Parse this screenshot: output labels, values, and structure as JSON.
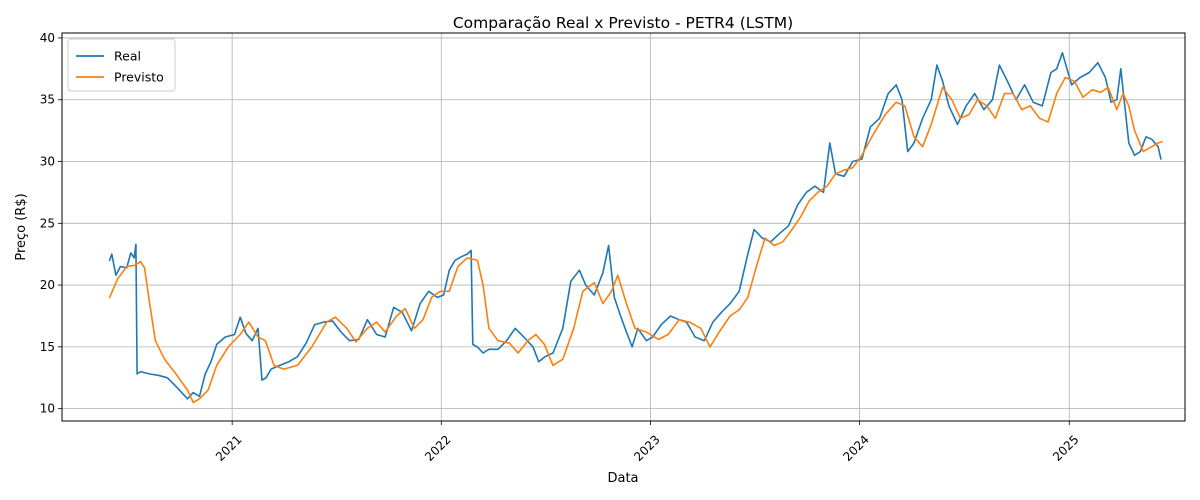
{
  "chart_data": {
    "type": "line",
    "title": "Comparação Real x Previsto - PETR4 (LSTM)",
    "xlabel": "Data",
    "ylabel": "Preço (R$)",
    "xlim": [
      "2020-03-10",
      "2025-07-22"
    ],
    "ylim": [
      9,
      40.4
    ],
    "x_ticks": [
      {
        "date": "2021-01-01",
        "label": "2021"
      },
      {
        "date": "2022-01-01",
        "label": "2022"
      },
      {
        "date": "2023-01-01",
        "label": "2023"
      },
      {
        "date": "2024-01-01",
        "label": "2024"
      },
      {
        "date": "2025-01-01",
        "label": "2025"
      }
    ],
    "y_ticks": [
      10,
      15,
      20,
      25,
      30,
      35,
      40
    ],
    "grid": true,
    "legend_position": "top-left",
    "series": [
      {
        "name": "Real",
        "color": "#1f77b4",
        "points": [
          [
            "2020-06-01",
            22.0
          ],
          [
            "2020-06-05",
            22.5
          ],
          [
            "2020-06-12",
            20.8
          ],
          [
            "2020-06-20",
            21.5
          ],
          [
            "2020-07-01",
            21.4
          ],
          [
            "2020-07-08",
            22.6
          ],
          [
            "2020-07-14",
            22.2
          ],
          [
            "2020-07-17",
            23.3
          ],
          [
            "2020-07-19",
            12.8
          ],
          [
            "2020-07-25",
            13.0
          ],
          [
            "2020-08-10",
            12.8
          ],
          [
            "2020-08-25",
            12.7
          ],
          [
            "2020-09-10",
            12.5
          ],
          [
            "2020-09-25",
            11.8
          ],
          [
            "2020-10-05",
            11.3
          ],
          [
            "2020-10-15",
            10.8
          ],
          [
            "2020-10-25",
            11.3
          ],
          [
            "2020-11-05",
            11.0
          ],
          [
            "2020-11-15",
            12.8
          ],
          [
            "2020-11-25",
            13.8
          ],
          [
            "2020-12-05",
            15.2
          ],
          [
            "2020-12-20",
            15.8
          ],
          [
            "2021-01-05",
            16.0
          ],
          [
            "2021-01-15",
            17.4
          ],
          [
            "2021-01-25",
            16.1
          ],
          [
            "2021-02-05",
            15.5
          ],
          [
            "2021-02-15",
            16.5
          ],
          [
            "2021-02-22",
            12.3
          ],
          [
            "2021-03-01",
            12.5
          ],
          [
            "2021-03-10",
            13.2
          ],
          [
            "2021-03-25",
            13.5
          ],
          [
            "2021-04-10",
            13.8
          ],
          [
            "2021-04-25",
            14.2
          ],
          [
            "2021-05-10",
            15.3
          ],
          [
            "2021-05-25",
            16.8
          ],
          [
            "2021-06-10",
            17.0
          ],
          [
            "2021-06-25",
            17.1
          ],
          [
            "2021-07-10",
            16.2
          ],
          [
            "2021-07-25",
            15.5
          ],
          [
            "2021-08-10",
            15.6
          ],
          [
            "2021-08-25",
            17.2
          ],
          [
            "2021-09-10",
            16.0
          ],
          [
            "2021-09-25",
            15.8
          ],
          [
            "2021-10-10",
            18.2
          ],
          [
            "2021-10-25",
            17.8
          ],
          [
            "2021-11-10",
            16.3
          ],
          [
            "2021-11-25",
            18.5
          ],
          [
            "2021-12-10",
            19.5
          ],
          [
            "2021-12-25",
            19.0
          ],
          [
            "2022-01-05",
            19.2
          ],
          [
            "2022-01-15",
            21.2
          ],
          [
            "2022-01-25",
            22.0
          ],
          [
            "2022-02-05",
            22.3
          ],
          [
            "2022-02-15",
            22.5
          ],
          [
            "2022-02-22",
            22.8
          ],
          [
            "2022-02-25",
            15.2
          ],
          [
            "2022-03-05",
            15.0
          ],
          [
            "2022-03-15",
            14.5
          ],
          [
            "2022-03-25",
            14.8
          ],
          [
            "2022-04-10",
            14.8
          ],
          [
            "2022-04-25",
            15.5
          ],
          [
            "2022-05-10",
            16.5
          ],
          [
            "2022-05-25",
            15.8
          ],
          [
            "2022-06-10",
            15.0
          ],
          [
            "2022-06-20",
            13.8
          ],
          [
            "2022-07-01",
            14.2
          ],
          [
            "2022-07-15",
            14.5
          ],
          [
            "2022-08-01",
            16.5
          ],
          [
            "2022-08-15",
            20.3
          ],
          [
            "2022-08-30",
            21.2
          ],
          [
            "2022-09-10",
            20.0
          ],
          [
            "2022-09-25",
            19.2
          ],
          [
            "2022-10-10",
            21.0
          ],
          [
            "2022-10-20",
            23.2
          ],
          [
            "2022-10-30",
            19.0
          ],
          [
            "2022-11-10",
            17.5
          ],
          [
            "2022-11-20",
            16.2
          ],
          [
            "2022-11-30",
            15.0
          ],
          [
            "2022-12-10",
            16.5
          ],
          [
            "2022-12-25",
            15.5
          ],
          [
            "2023-01-05",
            15.8
          ],
          [
            "2023-01-20",
            16.8
          ],
          [
            "2023-02-05",
            17.5
          ],
          [
            "2023-02-20",
            17.2
          ],
          [
            "2023-03-05",
            17.0
          ],
          [
            "2023-03-20",
            15.8
          ],
          [
            "2023-04-05",
            15.5
          ],
          [
            "2023-04-20",
            17.0
          ],
          [
            "2023-05-05",
            17.8
          ],
          [
            "2023-05-20",
            18.5
          ],
          [
            "2023-06-05",
            19.5
          ],
          [
            "2023-06-20",
            22.5
          ],
          [
            "2023-07-01",
            24.5
          ],
          [
            "2023-07-15",
            23.8
          ],
          [
            "2023-07-30",
            23.5
          ],
          [
            "2023-08-15",
            24.2
          ],
          [
            "2023-08-30",
            24.8
          ],
          [
            "2023-09-15",
            26.5
          ],
          [
            "2023-09-30",
            27.5
          ],
          [
            "2023-10-15",
            28.0
          ],
          [
            "2023-10-30",
            27.5
          ],
          [
            "2023-11-10",
            31.5
          ],
          [
            "2023-11-20",
            29.0
          ],
          [
            "2023-12-05",
            28.8
          ],
          [
            "2023-12-20",
            30.0
          ],
          [
            "2024-01-05",
            30.2
          ],
          [
            "2024-01-20",
            32.8
          ],
          [
            "2024-02-05",
            33.5
          ],
          [
            "2024-02-20",
            35.5
          ],
          [
            "2024-03-05",
            36.2
          ],
          [
            "2024-03-15",
            35.0
          ],
          [
            "2024-03-25",
            30.8
          ],
          [
            "2024-04-05",
            31.5
          ],
          [
            "2024-04-20",
            33.5
          ],
          [
            "2024-05-05",
            35.0
          ],
          [
            "2024-05-15",
            37.8
          ],
          [
            "2024-05-25",
            36.5
          ],
          [
            "2024-06-05",
            34.5
          ],
          [
            "2024-06-20",
            33.0
          ],
          [
            "2024-07-05",
            34.5
          ],
          [
            "2024-07-20",
            35.5
          ],
          [
            "2024-08-05",
            34.2
          ],
          [
            "2024-08-20",
            35.0
          ],
          [
            "2024-09-01",
            37.8
          ],
          [
            "2024-09-15",
            36.5
          ],
          [
            "2024-09-30",
            35.0
          ],
          [
            "2024-10-15",
            36.2
          ],
          [
            "2024-10-30",
            34.8
          ],
          [
            "2024-11-15",
            34.5
          ],
          [
            "2024-11-30",
            37.2
          ],
          [
            "2024-12-10",
            37.5
          ],
          [
            "2024-12-20",
            38.8
          ],
          [
            "2025-01-05",
            36.2
          ],
          [
            "2025-01-20",
            36.8
          ],
          [
            "2025-02-05",
            37.2
          ],
          [
            "2025-02-20",
            38.0
          ],
          [
            "2025-03-05",
            36.8
          ],
          [
            "2025-03-15",
            34.8
          ],
          [
            "2025-03-25",
            35.0
          ],
          [
            "2025-04-01",
            37.5
          ],
          [
            "2025-04-08",
            34.5
          ],
          [
            "2025-04-15",
            31.5
          ],
          [
            "2025-04-25",
            30.5
          ],
          [
            "2025-05-05",
            30.8
          ],
          [
            "2025-05-15",
            32.0
          ],
          [
            "2025-05-25",
            31.8
          ],
          [
            "2025-06-05",
            31.2
          ],
          [
            "2025-06-10",
            30.2
          ]
        ]
      },
      {
        "name": "Previsto",
        "color": "#ff7f0e",
        "points": [
          [
            "2020-06-01",
            19.0
          ],
          [
            "2020-06-15",
            20.5
          ],
          [
            "2020-07-01",
            21.5
          ],
          [
            "2020-07-15",
            21.6
          ],
          [
            "2020-07-25",
            21.9
          ],
          [
            "2020-08-01",
            21.4
          ],
          [
            "2020-08-10",
            18.5
          ],
          [
            "2020-08-20",
            15.5
          ],
          [
            "2020-09-05",
            14.0
          ],
          [
            "2020-09-25",
            12.8
          ],
          [
            "2020-10-15",
            11.5
          ],
          [
            "2020-10-25",
            10.5
          ],
          [
            "2020-11-05",
            10.8
          ],
          [
            "2020-11-20",
            11.5
          ],
          [
            "2020-12-05",
            13.5
          ],
          [
            "2020-12-25",
            15.0
          ],
          [
            "2021-01-15",
            16.0
          ],
          [
            "2021-01-30",
            17.0
          ],
          [
            "2021-02-15",
            15.8
          ],
          [
            "2021-02-28",
            15.5
          ],
          [
            "2021-03-15",
            13.5
          ],
          [
            "2021-04-01",
            13.2
          ],
          [
            "2021-04-25",
            13.5
          ],
          [
            "2021-05-20",
            15.0
          ],
          [
            "2021-06-15",
            17.0
          ],
          [
            "2021-06-30",
            17.4
          ],
          [
            "2021-07-20",
            16.5
          ],
          [
            "2021-08-05",
            15.4
          ],
          [
            "2021-08-25",
            16.5
          ],
          [
            "2021-09-10",
            17.0
          ],
          [
            "2021-09-25",
            16.2
          ],
          [
            "2021-10-15",
            17.5
          ],
          [
            "2021-10-30",
            18.1
          ],
          [
            "2021-11-15",
            16.5
          ],
          [
            "2021-11-30",
            17.2
          ],
          [
            "2021-12-15",
            19.0
          ],
          [
            "2021-12-30",
            19.5
          ],
          [
            "2022-01-15",
            19.5
          ],
          [
            "2022-01-30",
            21.5
          ],
          [
            "2022-02-15",
            22.2
          ],
          [
            "2022-03-05",
            22.0
          ],
          [
            "2022-03-15",
            20.0
          ],
          [
            "2022-03-25",
            16.5
          ],
          [
            "2022-04-10",
            15.5
          ],
          [
            "2022-04-30",
            15.3
          ],
          [
            "2022-05-15",
            14.5
          ],
          [
            "2022-06-01",
            15.5
          ],
          [
            "2022-06-15",
            16.0
          ],
          [
            "2022-06-30",
            15.2
          ],
          [
            "2022-07-15",
            13.5
          ],
          [
            "2022-08-01",
            14.0
          ],
          [
            "2022-08-20",
            16.5
          ],
          [
            "2022-09-05",
            19.5
          ],
          [
            "2022-09-25",
            20.2
          ],
          [
            "2022-10-10",
            18.5
          ],
          [
            "2022-10-25",
            19.5
          ],
          [
            "2022-11-05",
            20.8
          ],
          [
            "2022-11-20",
            18.5
          ],
          [
            "2022-12-05",
            16.5
          ],
          [
            "2022-12-25",
            16.2
          ],
          [
            "2023-01-15",
            15.6
          ],
          [
            "2023-02-01",
            16.0
          ],
          [
            "2023-02-20",
            17.2
          ],
          [
            "2023-03-10",
            17.0
          ],
          [
            "2023-03-30",
            16.5
          ],
          [
            "2023-04-15",
            15.0
          ],
          [
            "2023-05-01",
            16.2
          ],
          [
            "2023-05-20",
            17.5
          ],
          [
            "2023-06-05",
            18.0
          ],
          [
            "2023-06-20",
            19.0
          ],
          [
            "2023-07-05",
            21.5
          ],
          [
            "2023-07-20",
            23.8
          ],
          [
            "2023-08-05",
            23.2
          ],
          [
            "2023-08-20",
            23.5
          ],
          [
            "2023-09-05",
            24.5
          ],
          [
            "2023-09-20",
            25.5
          ],
          [
            "2023-10-05",
            26.8
          ],
          [
            "2023-10-20",
            27.5
          ],
          [
            "2023-11-05",
            28.0
          ],
          [
            "2023-11-20",
            29.0
          ],
          [
            "2023-12-05",
            29.3
          ],
          [
            "2023-12-20",
            29.5
          ],
          [
            "2024-01-05",
            30.5
          ],
          [
            "2024-01-25",
            32.2
          ],
          [
            "2024-02-15",
            33.8
          ],
          [
            "2024-03-05",
            34.8
          ],
          [
            "2024-03-20",
            34.5
          ],
          [
            "2024-04-05",
            32.0
          ],
          [
            "2024-04-20",
            31.2
          ],
          [
            "2024-05-05",
            33.0
          ],
          [
            "2024-05-25",
            36.0
          ],
          [
            "2024-06-10",
            35.0
          ],
          [
            "2024-06-25",
            33.5
          ],
          [
            "2024-07-10",
            33.8
          ],
          [
            "2024-07-25",
            35.0
          ],
          [
            "2024-08-10",
            34.5
          ],
          [
            "2024-08-25",
            33.5
          ],
          [
            "2024-09-10",
            35.5
          ],
          [
            "2024-09-25",
            35.5
          ],
          [
            "2024-10-10",
            34.2
          ],
          [
            "2024-10-25",
            34.5
          ],
          [
            "2024-11-10",
            33.5
          ],
          [
            "2024-11-25",
            33.2
          ],
          [
            "2024-12-10",
            35.5
          ],
          [
            "2024-12-25",
            36.8
          ],
          [
            "2025-01-10",
            36.5
          ],
          [
            "2025-01-25",
            35.2
          ],
          [
            "2025-02-10",
            35.8
          ],
          [
            "2025-02-25",
            35.6
          ],
          [
            "2025-03-10",
            36.0
          ],
          [
            "2025-03-25",
            34.2
          ],
          [
            "2025-04-05",
            35.5
          ],
          [
            "2025-04-15",
            34.5
          ],
          [
            "2025-04-25",
            32.5
          ],
          [
            "2025-05-10",
            30.8
          ],
          [
            "2025-05-25",
            31.2
          ],
          [
            "2025-06-05",
            31.5
          ],
          [
            "2025-06-12",
            31.6
          ]
        ]
      }
    ]
  }
}
